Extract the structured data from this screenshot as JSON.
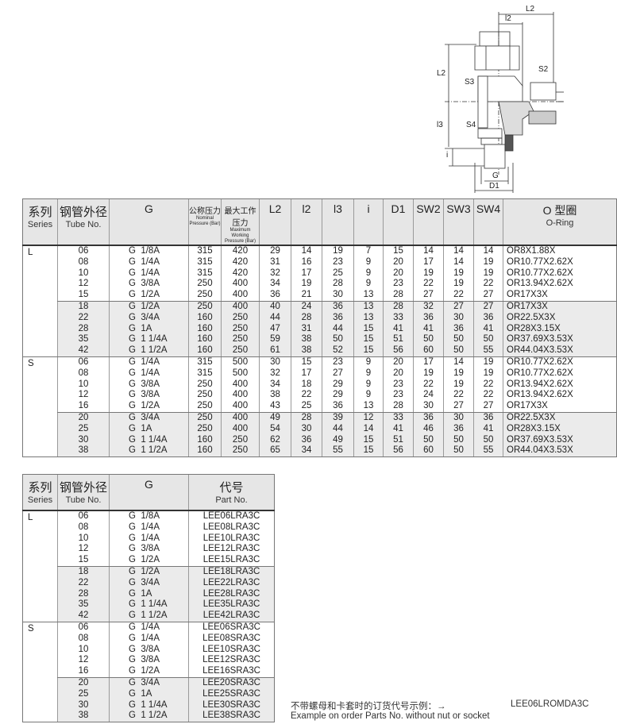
{
  "diagram": {
    "labels": {
      "L2_top": "L2",
      "l2": "l2",
      "L2_side": "L2",
      "S2": "S2",
      "S3": "S3",
      "l3": "l3",
      "S4": "S4",
      "i": "i",
      "G": "G",
      "D1": "D1"
    }
  },
  "spec_table": {
    "headers": {
      "series_cn": "系列",
      "series_en": "Series",
      "tube_cn": "钢管外径",
      "tube_en": "Tube No.",
      "g": "G",
      "nominal_cn": "公称压力",
      "nominal_en": "Nominal Pressure (Bar)",
      "working_cn": "最大工作压力",
      "working_en": "Maximum Working Pressure (Bar)",
      "L2": "L2",
      "l2": "l2",
      "l3": "l3",
      "i": "i",
      "D1": "D1",
      "SW2": "SW2",
      "SW3": "SW3",
      "SW4": "SW4",
      "oring_cn": "O 型圈",
      "oring_en": "O-Ring"
    },
    "groups": [
      {
        "series": "L",
        "rows": [
          [
            "06",
            "G  1/8A",
            "315",
            "420",
            "29",
            "14",
            "19",
            "7",
            "15",
            "14",
            "14",
            "14",
            "OR8X1.88X"
          ],
          [
            "08",
            "G  1/4A",
            "315",
            "420",
            "31",
            "16",
            "23",
            "9",
            "20",
            "17",
            "14",
            "19",
            "OR10.77X2.62X"
          ],
          [
            "10",
            "G  1/4A",
            "315",
            "420",
            "32",
            "17",
            "25",
            "9",
            "20",
            "19",
            "19",
            "19",
            "OR10.77X2.62X"
          ],
          [
            "12",
            "G  3/8A",
            "250",
            "400",
            "34",
            "19",
            "28",
            "9",
            "23",
            "22",
            "19",
            "22",
            "OR13.94X2.62X"
          ],
          [
            "15",
            "G  1/2A",
            "250",
            "400",
            "36",
            "21",
            "30",
            "13",
            "28",
            "27",
            "22",
            "27",
            "OR17X3X"
          ]
        ]
      },
      {
        "series": "",
        "rows": [
          [
            "18",
            "G  1/2A",
            "250",
            "400",
            "40",
            "24",
            "36",
            "13",
            "28",
            "32",
            "27",
            "27",
            "OR17X3X"
          ],
          [
            "22",
            "G  3/4A",
            "160",
            "250",
            "44",
            "28",
            "36",
            "13",
            "33",
            "36",
            "30",
            "36",
            "OR22.5X3X"
          ],
          [
            "28",
            "G  1A",
            "160",
            "250",
            "47",
            "31",
            "44",
            "15",
            "41",
            "41",
            "36",
            "41",
            "OR28X3.15X"
          ],
          [
            "35",
            "G  1 1/4A",
            "160",
            "250",
            "59",
            "38",
            "50",
            "15",
            "51",
            "50",
            "50",
            "50",
            "OR37.69X3.53X"
          ],
          [
            "42",
            "G  1 1/2A",
            "160",
            "250",
            "61",
            "38",
            "52",
            "15",
            "56",
            "60",
            "50",
            "55",
            "OR44.04X3.53X"
          ]
        ]
      },
      {
        "series": "S",
        "rows": [
          [
            "06",
            "G  1/4A",
            "315",
            "500",
            "30",
            "15",
            "23",
            "9",
            "20",
            "17",
            "14",
            "19",
            "OR10.77X2.62X"
          ],
          [
            "08",
            "G  1/4A",
            "315",
            "500",
            "32",
            "17",
            "27",
            "9",
            "20",
            "19",
            "19",
            "19",
            "OR10.77X2.62X"
          ],
          [
            "10",
            "G  3/8A",
            "250",
            "400",
            "34",
            "18",
            "29",
            "9",
            "23",
            "22",
            "19",
            "22",
            "OR13.94X2.62X"
          ],
          [
            "12",
            "G  3/8A",
            "250",
            "400",
            "38",
            "22",
            "29",
            "9",
            "23",
            "24",
            "22",
            "22",
            "OR13.94X2.62X"
          ],
          [
            "16",
            "G  1/2A",
            "250",
            "400",
            "43",
            "25",
            "36",
            "13",
            "28",
            "30",
            "27",
            "27",
            "OR17X3X"
          ]
        ]
      },
      {
        "series": "",
        "rows": [
          [
            "20",
            "G  3/4A",
            "250",
            "400",
            "49",
            "28",
            "39",
            "12",
            "33",
            "36",
            "30",
            "36",
            "OR22.5X3X"
          ],
          [
            "25",
            "G  1A",
            "250",
            "400",
            "54",
            "30",
            "44",
            "14",
            "41",
            "46",
            "36",
            "41",
            "OR28X3.15X"
          ],
          [
            "30",
            "G  1 1/4A",
            "160",
            "250",
            "62",
            "36",
            "49",
            "15",
            "51",
            "50",
            "50",
            "50",
            "OR37.69X3.53X"
          ],
          [
            "38",
            "G  1 1/2A",
            "160",
            "250",
            "65",
            "34",
            "55",
            "15",
            "56",
            "60",
            "50",
            "55",
            "OR44.04X3.53X"
          ]
        ]
      }
    ]
  },
  "part_table": {
    "headers": {
      "series_cn": "系列",
      "series_en": "Series",
      "tube_cn": "钢管外径",
      "tube_en": "Tube No.",
      "g": "G",
      "part_cn": "代号",
      "part_en": "Part No."
    },
    "groups": [
      {
        "series": "L",
        "rows": [
          [
            "06",
            "G  1/8A",
            "LEE06LRA3C"
          ],
          [
            "08",
            "G  1/4A",
            "LEE08LRA3C"
          ],
          [
            "10",
            "G  1/4A",
            "LEE10LRA3C"
          ],
          [
            "12",
            "G  3/8A",
            "LEE12LRA3C"
          ],
          [
            "15",
            "G  1/2A",
            "LEE15LRA3C"
          ]
        ]
      },
      {
        "series": "",
        "rows": [
          [
            "18",
            "G  1/2A",
            "LEE18LRA3C"
          ],
          [
            "22",
            "G  3/4A",
            "LEE22LRA3C"
          ],
          [
            "28",
            "G  1A",
            "LEE28LRA3C"
          ],
          [
            "35",
            "G  1 1/4A",
            "LEE35LRA3C"
          ],
          [
            "42",
            "G  1 1/2A",
            "LEE42LRA3C"
          ]
        ]
      },
      {
        "series": "S",
        "rows": [
          [
            "06",
            "G  1/4A",
            "LEE06SRA3C"
          ],
          [
            "08",
            "G  1/4A",
            "LEE08SRA3C"
          ],
          [
            "10",
            "G  3/8A",
            "LEE10SRA3C"
          ],
          [
            "12",
            "G  3/8A",
            "LEE12SRA3C"
          ],
          [
            "16",
            "G  1/2A",
            "LEE16SRA3C"
          ]
        ]
      },
      {
        "series": "",
        "rows": [
          [
            "20",
            "G  3/4A",
            "LEE20SRA3C"
          ],
          [
            "25",
            "G  1A",
            "LEE25SRA3C"
          ],
          [
            "30",
            "G  1 1/4A",
            "LEE30SRA3C"
          ],
          [
            "38",
            "G  1 1/2A",
            "LEE38SRA3C"
          ]
        ]
      }
    ]
  },
  "footer": {
    "example_cn": "不带螺母和卡套时的订货代号示例：→",
    "example_en": "Example on order Parts No. without nut or socket",
    "example_part": "LEE06LROMDA3C"
  }
}
